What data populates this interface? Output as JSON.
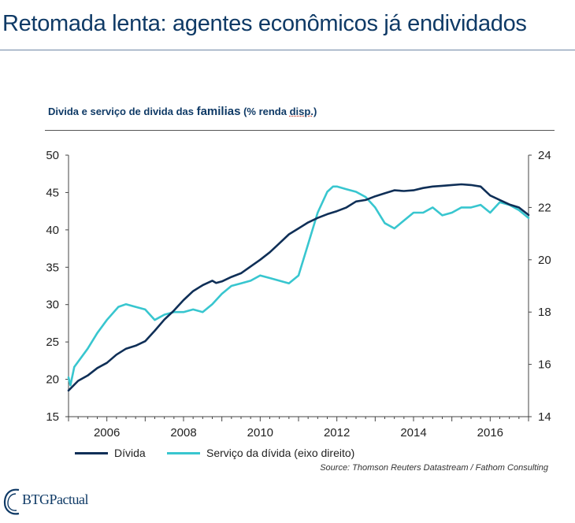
{
  "header": {
    "title": "Retomada lenta: agentes econômicos já endividados"
  },
  "chart_header": {
    "prefix": "Divida e serviço de divida das ",
    "emphasis": "familias",
    "unit_open": " (% renda ",
    "unit_underlined": "disp.",
    "unit_close": ")"
  },
  "source": "Source: Thomson Reuters Datastream / Fathom Consulting",
  "logo": {
    "text": "BTGPactual"
  },
  "colors": {
    "divida": "#0f2f57",
    "servico": "#38c6cf",
    "title": "#0f3a66"
  },
  "chart_data": {
    "type": "line",
    "title": "Divida e serviço de divida das familias (% renda disp.)",
    "x_ticks": [
      2006,
      2008,
      2010,
      2012,
      2014,
      2016
    ],
    "xlim": [
      2005,
      2017
    ],
    "left_axis": {
      "ylim": [
        15,
        50
      ],
      "ticks": [
        15,
        20,
        25,
        30,
        35,
        40,
        45,
        50
      ]
    },
    "right_axis": {
      "ylim": [
        14,
        24
      ],
      "ticks": [
        14,
        16,
        18,
        20,
        22,
        24
      ]
    },
    "grid": false,
    "legend_placement": "bottom-left",
    "series": [
      {
        "name": "Dívida",
        "axis": "left",
        "x": [
          2005.0,
          2005.25,
          2005.5,
          2005.75,
          2006.0,
          2006.25,
          2006.5,
          2006.75,
          2007.0,
          2007.25,
          2007.5,
          2007.75,
          2008.0,
          2008.25,
          2008.5,
          2008.75,
          2008.85,
          2009.0,
          2009.25,
          2009.5,
          2009.75,
          2010.0,
          2010.25,
          2010.5,
          2010.75,
          2011.0,
          2011.25,
          2011.5,
          2011.75,
          2012.0,
          2012.25,
          2012.5,
          2012.75,
          2013.0,
          2013.25,
          2013.5,
          2013.75,
          2014.0,
          2014.25,
          2014.5,
          2014.75,
          2015.0,
          2015.25,
          2015.5,
          2015.75,
          2016.0,
          2016.25,
          2016.5,
          2016.75,
          2017.0
        ],
        "values": [
          18.5,
          19.8,
          20.5,
          21.5,
          22.2,
          23.3,
          24.1,
          24.5,
          25.1,
          26.5,
          28.0,
          29.2,
          30.6,
          31.8,
          32.6,
          33.2,
          32.9,
          33.1,
          33.7,
          34.2,
          35.1,
          36.0,
          37.0,
          38.2,
          39.4,
          40.2,
          41.0,
          41.6,
          42.1,
          42.5,
          43.0,
          43.8,
          44.0,
          44.5,
          44.9,
          45.3,
          45.2,
          45.3,
          45.6,
          45.8,
          45.9,
          46.0,
          46.1,
          46.0,
          45.8,
          44.6,
          44.0,
          43.4,
          43.0,
          42.0
        ]
      },
      {
        "name": "Serviço da dívida (eixo direito)",
        "axis": "right",
        "x": [
          2005.0,
          2005.05,
          2005.15,
          2005.5,
          2005.75,
          2006.0,
          2006.3,
          2006.5,
          2006.75,
          2007.0,
          2007.25,
          2007.5,
          2007.75,
          2008.0,
          2008.25,
          2008.5,
          2008.75,
          2009.0,
          2009.25,
          2009.5,
          2009.75,
          2010.0,
          2010.25,
          2010.5,
          2010.75,
          2011.0,
          2011.25,
          2011.5,
          2011.75,
          2011.9,
          2012.0,
          2012.25,
          2012.5,
          2012.75,
          2013.0,
          2013.25,
          2013.5,
          2013.75,
          2014.0,
          2014.25,
          2014.5,
          2014.75,
          2015.0,
          2015.25,
          2015.5,
          2015.75,
          2016.0,
          2016.25,
          2016.5,
          2016.75,
          2017.0
        ],
        "values": [
          15.5,
          15.2,
          15.9,
          16.6,
          17.2,
          17.7,
          18.2,
          18.3,
          18.2,
          18.1,
          17.7,
          17.9,
          18.0,
          18.0,
          18.1,
          18.0,
          18.3,
          18.7,
          19.0,
          19.1,
          19.2,
          19.4,
          19.3,
          19.2,
          19.1,
          19.4,
          20.6,
          21.8,
          22.6,
          22.8,
          22.8,
          22.7,
          22.6,
          22.4,
          22.0,
          21.4,
          21.2,
          21.5,
          21.8,
          21.8,
          22.0,
          21.7,
          21.8,
          22.0,
          22.0,
          22.1,
          21.8,
          22.2,
          22.1,
          21.9,
          21.6
        ]
      }
    ]
  }
}
